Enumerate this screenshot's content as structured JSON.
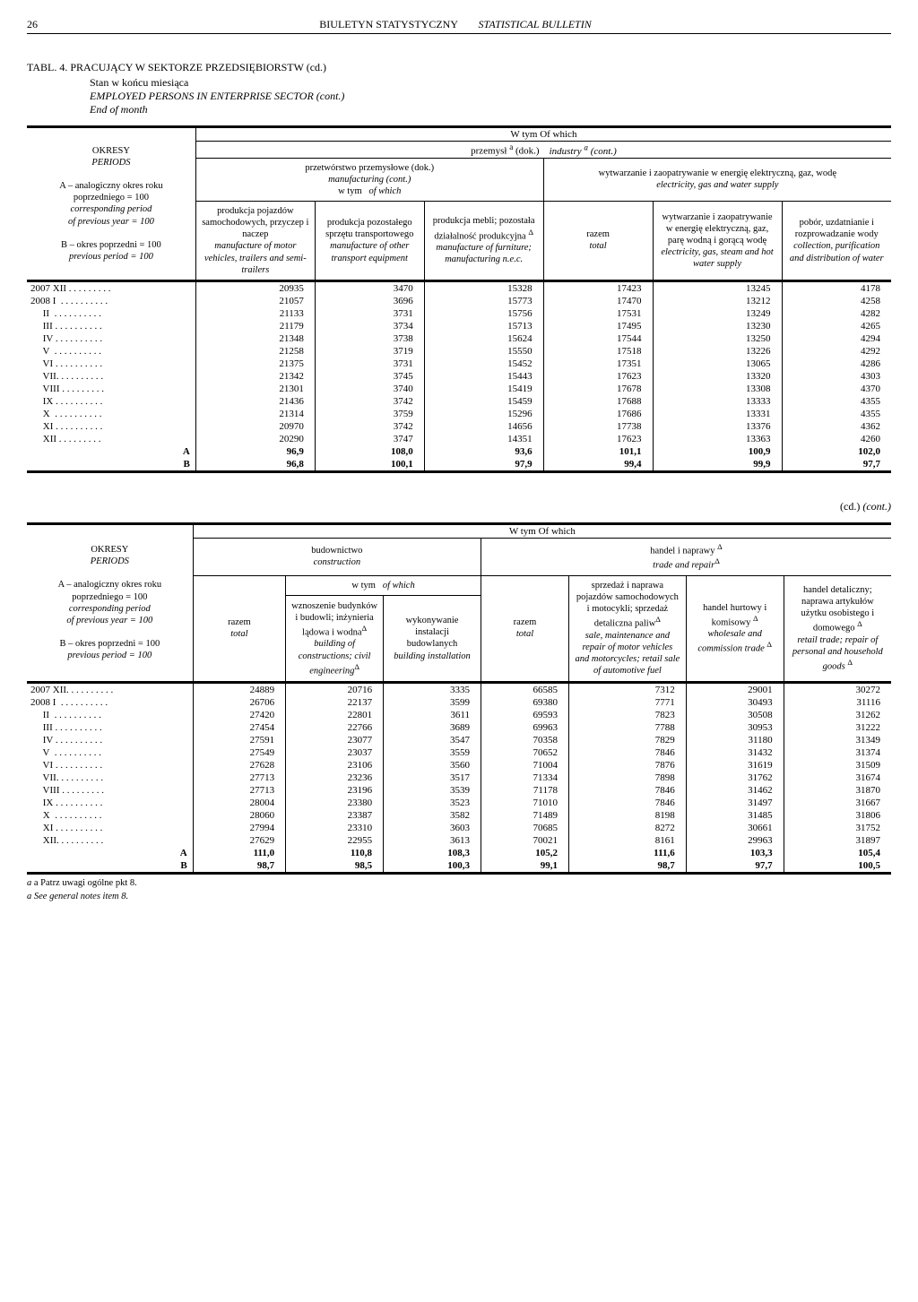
{
  "header": {
    "page_no": "26",
    "title_pl": "BIULETYN STATYSTYCZNY",
    "title_en": "STATISTICAL BULLETIN"
  },
  "table1": {
    "title": "TABL. 4. PRACUJĄCY W SEKTORZE PRZEDSIĘBIORSTW (cd.)",
    "sub1": "Stan w końcu miesiąca",
    "sub2_en": "EMPLOYED PERSONS IN ENTERPRISE SECTOR (cont.)",
    "sub3_en": "End of month",
    "row_header": "OKRESY\nPERIODS\nA – analogiczny okres roku poprzedniego = 100\ncorresponding period of previous year = 100\nB – okres poprzedni = 100\nprevious period = 100",
    "h_wtym": "W tym   Of which",
    "h_przemysl": "przemysł a  (dok.)    industry a  (cont.)",
    "h_przet": "przetwórstwo przemysłowe (dok.)\nmanufacturing (cont.)",
    "h_wtym2": "w tym   of which",
    "h_wytw": "wytwarzanie i zaopatrywanie w energię elektryczną, gaz, wodę\nelectricity, gas and water supply",
    "c1": "produkcja pojazdów samochodowych, przyczep i naczep\nmanufacture of motor vehicles, trailers and semi-trailers",
    "c2": "produkcja pozostałego sprzętu transportowego\nmanufacture of other transport equipment",
    "c3": "produkcja mebli; pozostała działalność produkcyjna Δ\nmanufacture of furniture; manufacturing n.e.c.",
    "c4": "razem\ntotal",
    "c5": "wytwarzanie i zaopatrywanie w energię elektryczną, gaz, parę wodną i gorącą wodę\nelectricity, gas, steam and hot water supply",
    "c6": "pobór, uzdatnianie i rozprowadzanie wody\ncollection, purification and distribution of water",
    "periods": [
      "2007 XII . . . . . . . . .",
      "2008 I  . . . . . . . . . .",
      "     II  . . . . . . . . . .",
      "     III . . . . . . . . . .",
      "     IV . . . . . . . . . .",
      "     V  . . . . . . . . . .",
      "     VI . . . . . . . . . .",
      "     VII. . . . . . . . . .",
      "     VIII . . . . . . . . .",
      "     IX . . . . . . . . . .",
      "     X  . . . . . . . . . .",
      "     XI . . . . . . . . . .",
      "     XII . . . . . . . . ."
    ],
    "rows": [
      [
        "20935",
        "3470",
        "15328",
        "17423",
        "13245",
        "4178"
      ],
      [
        "21057",
        "3696",
        "15773",
        "17470",
        "13212",
        "4258"
      ],
      [
        "21133",
        "3731",
        "15756",
        "17531",
        "13249",
        "4282"
      ],
      [
        "21179",
        "3734",
        "15713",
        "17495",
        "13230",
        "4265"
      ],
      [
        "21348",
        "3738",
        "15624",
        "17544",
        "13250",
        "4294"
      ],
      [
        "21258",
        "3719",
        "15550",
        "17518",
        "13226",
        "4292"
      ],
      [
        "21375",
        "3731",
        "15452",
        "17351",
        "13065",
        "4286"
      ],
      [
        "21342",
        "3745",
        "15443",
        "17623",
        "13320",
        "4303"
      ],
      [
        "21301",
        "3740",
        "15419",
        "17678",
        "13308",
        "4370"
      ],
      [
        "21436",
        "3742",
        "15459",
        "17688",
        "13333",
        "4355"
      ],
      [
        "21314",
        "3759",
        "15296",
        "17686",
        "13331",
        "4355"
      ],
      [
        "20970",
        "3742",
        "14656",
        "17738",
        "13376",
        "4362"
      ],
      [
        "20290",
        "3747",
        "14351",
        "17623",
        "13363",
        "4260"
      ]
    ],
    "A": [
      "96,9",
      "108,0",
      "93,6",
      "101,1",
      "100,9",
      "102,0"
    ],
    "B": [
      "96,8",
      "100,1",
      "97,9",
      "99,4",
      "99,9",
      "97,7"
    ]
  },
  "cd_cont": "(cd.) (cont.)",
  "table2": {
    "h_wtym": "W tym   Of which",
    "row_header": "OKRESY\nPERIODS\nA – analogiczny okres roku poprzedniego = 100\ncorresponding period of previous year = 100\nB – okres poprzedni = 100\nprevious period = 100",
    "h_bud": "budownictwo\nconstruction",
    "h_wtym2": "w tym   of which",
    "h_trade": "handel i naprawy Δ\ntrade and repair Δ",
    "c_razem1": "razem\ntotal",
    "c1": "wznoszenie budynków i budowli; inżynieria lądowa i wodnaΔ\nbuilding of constructions; civil engineeringΔ",
    "c2": "wykonywanie instalacji budowlanych\nbuilding installation",
    "c_razem2": "razem\ntotal",
    "c3": "sprzedaż i naprawa pojazdów samochodowych i motocykli; sprzedaż detaliczna paliwΔ\nsale, maintenance and repair of motor vehicles and motorcycles; retail sale of automotive fuel",
    "c4": "handel hurtowy i komisowy Δ\nwholesale and commission trade Δ",
    "c5": "handel detaliczny; naprawa artykułów użytku osobistego i domowego Δ\nretail trade; repair of personal and household goods Δ",
    "periods": [
      "2007 XII. . . . . . . . . .",
      "2008 I  . . . . . . . . . .",
      "     II  . . . . . . . . . .",
      "     III . . . . . . . . . .",
      "     IV . . . . . . . . . .",
      "     V  . . . . . . . . . .",
      "     VI . . . . . . . . . .",
      "     VII. . . . . . . . . .",
      "     VIII . . . . . . . . .",
      "     IX . . . . . . . . . .",
      "     X  . . . . . . . . . .",
      "     XI . . . . . . . . . .",
      "     XII. . . . . . . . . ."
    ],
    "rows": [
      [
        "24889",
        "20716",
        "3335",
        "66585",
        "7312",
        "29001",
        "30272"
      ],
      [
        "26706",
        "22137",
        "3599",
        "69380",
        "7771",
        "30493",
        "31116"
      ],
      [
        "27420",
        "22801",
        "3611",
        "69593",
        "7823",
        "30508",
        "31262"
      ],
      [
        "27454",
        "22766",
        "3689",
        "69963",
        "7788",
        "30953",
        "31222"
      ],
      [
        "27591",
        "23077",
        "3547",
        "70358",
        "7829",
        "31180",
        "31349"
      ],
      [
        "27549",
        "23037",
        "3559",
        "70652",
        "7846",
        "31432",
        "31374"
      ],
      [
        "27628",
        "23106",
        "3560",
        "71004",
        "7876",
        "31619",
        "31509"
      ],
      [
        "27713",
        "23236",
        "3517",
        "71334",
        "7898",
        "31762",
        "31674"
      ],
      [
        "27713",
        "23196",
        "3539",
        "71178",
        "7846",
        "31462",
        "31870"
      ],
      [
        "28004",
        "23380",
        "3523",
        "71010",
        "7846",
        "31497",
        "31667"
      ],
      [
        "28060",
        "23387",
        "3582",
        "71489",
        "8198",
        "31485",
        "31806"
      ],
      [
        "27994",
        "23310",
        "3603",
        "70685",
        "8272",
        "30661",
        "31752"
      ],
      [
        "27629",
        "22955",
        "3613",
        "70021",
        "8161",
        "29963",
        "31897"
      ]
    ],
    "A": [
      "111,0",
      "110,8",
      "108,3",
      "105,2",
      "111,6",
      "103,3",
      "105,4"
    ],
    "B": [
      "98,7",
      "98,5",
      "100,3",
      "99,1",
      "98,7",
      "97,7",
      "100,5"
    ]
  },
  "footnote_a_pl": "a Patrz uwagi ogólne pkt 8.",
  "footnote_a_en": "a See general notes item 8."
}
